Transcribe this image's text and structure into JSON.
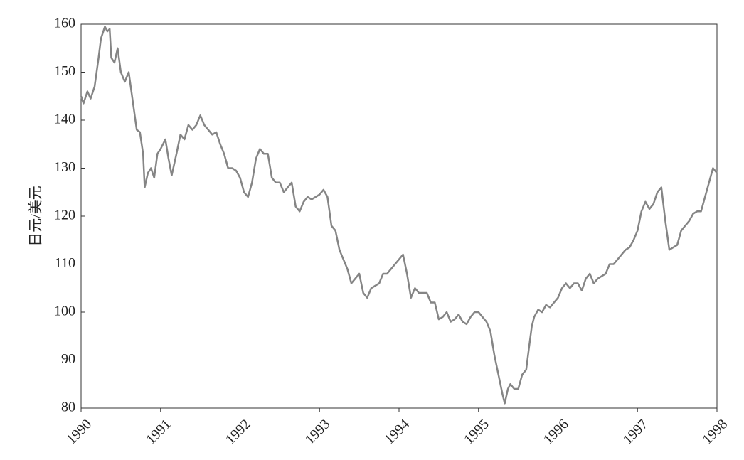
{
  "chart_data": {
    "type": "line",
    "y_label": "日元/美元",
    "color": "#858585",
    "xlim": [
      1990,
      1998
    ],
    "xticks": [
      1990,
      1991,
      1992,
      1993,
      1994,
      1995,
      1996,
      1997,
      1998
    ],
    "ylim": [
      80,
      160
    ],
    "yticks": [
      80,
      90,
      100,
      110,
      120,
      130,
      140,
      150,
      160
    ],
    "x": [
      1990.0,
      1990.03,
      1990.08,
      1990.12,
      1990.17,
      1990.22,
      1990.25,
      1990.3,
      1990.33,
      1990.36,
      1990.38,
      1990.42,
      1990.46,
      1990.5,
      1990.55,
      1990.6,
      1990.65,
      1990.7,
      1990.74,
      1990.78,
      1990.8,
      1990.84,
      1990.88,
      1990.92,
      1990.96,
      1991.0,
      1991.06,
      1991.1,
      1991.14,
      1991.2,
      1991.25,
      1991.3,
      1991.35,
      1991.4,
      1991.45,
      1991.5,
      1991.55,
      1991.6,
      1991.65,
      1991.7,
      1991.75,
      1991.8,
      1991.85,
      1991.9,
      1991.95,
      1992.0,
      1992.05,
      1992.1,
      1992.15,
      1992.2,
      1992.25,
      1992.3,
      1992.35,
      1992.4,
      1992.45,
      1992.5,
      1992.55,
      1992.6,
      1992.65,
      1992.7,
      1992.75,
      1992.8,
      1992.85,
      1992.9,
      1992.95,
      1993.0,
      1993.05,
      1993.1,
      1993.15,
      1993.2,
      1993.25,
      1993.3,
      1993.35,
      1993.4,
      1993.45,
      1993.5,
      1993.55,
      1993.6,
      1993.65,
      1993.7,
      1993.75,
      1993.8,
      1993.85,
      1993.9,
      1993.95,
      1994.0,
      1994.05,
      1994.1,
      1994.15,
      1994.2,
      1994.25,
      1994.3,
      1994.35,
      1994.4,
      1994.45,
      1994.5,
      1994.55,
      1994.6,
      1994.65,
      1994.7,
      1994.75,
      1994.8,
      1994.85,
      1994.9,
      1994.95,
      1995.0,
      1995.05,
      1995.1,
      1995.15,
      1995.2,
      1995.25,
      1995.3,
      1995.33,
      1995.37,
      1995.4,
      1995.45,
      1995.5,
      1995.55,
      1995.6,
      1995.63,
      1995.67,
      1995.7,
      1995.75,
      1995.8,
      1995.85,
      1995.9,
      1995.95,
      1996.0,
      1996.05,
      1996.1,
      1996.15,
      1996.2,
      1996.25,
      1996.3,
      1996.35,
      1996.4,
      1996.45,
      1996.5,
      1996.55,
      1996.6,
      1996.65,
      1996.7,
      1996.75,
      1996.8,
      1996.85,
      1996.9,
      1996.95,
      1997.0,
      1997.05,
      1997.1,
      1997.15,
      1997.2,
      1997.25,
      1997.3,
      1997.35,
      1997.4,
      1997.45,
      1997.5,
      1997.55,
      1997.6,
      1997.65,
      1997.7,
      1997.75,
      1997.8,
      1997.85,
      1997.9,
      1997.95,
      1998.0
    ],
    "values": [
      145,
      143.5,
      146,
      144.5,
      147,
      153,
      157,
      159.5,
      158.5,
      159,
      153,
      152,
      155,
      150,
      148,
      150,
      144,
      138,
      137.5,
      133,
      126,
      129,
      130,
      128,
      133,
      134,
      136,
      132,
      128.5,
      133,
      137,
      136,
      139,
      138,
      139,
      141,
      139,
      138,
      137,
      137.5,
      135,
      133,
      130,
      130,
      129.5,
      128,
      125,
      124,
      127,
      132,
      134,
      133,
      133,
      128,
      127,
      127,
      125,
      126,
      127,
      122,
      121,
      123,
      124,
      123.5,
      124,
      124.5,
      125.5,
      124,
      118,
      117,
      113,
      111,
      109,
      106,
      107,
      108,
      104,
      103,
      105,
      105.5,
      106,
      108,
      108,
      109,
      110,
      111,
      112,
      108,
      103,
      105,
      104,
      104,
      104,
      102,
      102,
      98.5,
      99,
      100,
      98,
      98.5,
      99.5,
      98,
      97.5,
      99,
      100,
      100,
      99,
      98,
      96,
      91,
      87,
      83,
      81,
      84,
      85,
      84,
      84,
      87,
      88,
      92,
      97,
      99,
      100.5,
      100,
      101.5,
      101,
      102,
      103,
      105,
      106,
      105,
      106,
      106,
      104.5,
      107,
      108,
      106,
      107,
      107.5,
      108,
      110,
      110,
      111,
      112,
      113,
      113.5,
      115,
      117,
      121,
      123,
      121.5,
      122.5,
      125,
      126,
      119,
      113,
      113.5,
      114,
      117,
      118,
      119,
      120.5,
      121,
      121,
      124,
      127,
      130,
      129
    ]
  }
}
